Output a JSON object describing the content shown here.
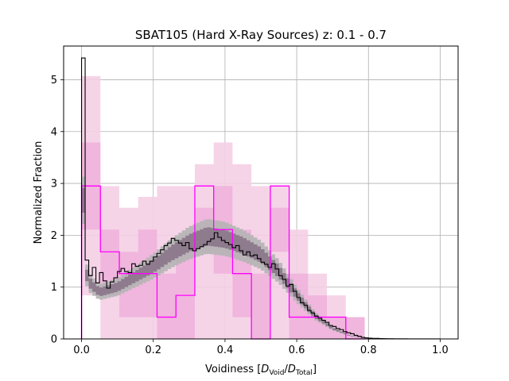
{
  "chart_data": {
    "type": "area",
    "title": "SBAT105 (Hard X-Ray Sources) z: 0.1 - 0.7",
    "xlabel": {
      "prefix": "Voidiness [",
      "num": "D",
      "num_sub": "Void",
      "sep": "/",
      "den": "D",
      "den_sub": "Total",
      "suffix": "]"
    },
    "ylabel": "Normalized Fraction",
    "xlim": [
      -0.05,
      1.05
    ],
    "ylim": [
      0,
      5.65
    ],
    "grid": true,
    "x_ticks": [
      0.0,
      0.2,
      0.4,
      0.6,
      0.8,
      1.0
    ],
    "x_tick_labels": [
      "0.0",
      "0.2",
      "0.4",
      "0.6",
      "0.8",
      "1.0"
    ],
    "y_ticks": [
      0,
      1,
      2,
      3,
      4,
      5
    ],
    "y_tick_labels": [
      "0",
      "1",
      "2",
      "3",
      "4",
      "5"
    ],
    "colors": {
      "target": "#ff00ff",
      "target_band_outer": "#f5cfe6",
      "target_band_inner": "#efb0da",
      "reference_line": "#000000",
      "reference_band_outer": "#b4b4b4",
      "reference_band_inner": "#8a7488"
    },
    "series": [
      {
        "role": "target",
        "edges": [
          0.0,
          0.0526,
          0.1053,
          0.1579,
          0.2105,
          0.2632,
          0.3158,
          0.3684,
          0.4211,
          0.4737,
          0.5263,
          0.5789,
          0.6316,
          0.6842,
          0.7368,
          0.7895
        ],
        "values": [
          2.95,
          1.68,
          1.26,
          1.26,
          0.42,
          0.84,
          2.95,
          2.11,
          1.26,
          0.0,
          2.95,
          0.42,
          0.42,
          0.42,
          0.0
        ],
        "band_outer_low": [
          0.84,
          0.0,
          0.0,
          0.0,
          0.0,
          0.0,
          0.0,
          0.0,
          0.0,
          0.0,
          0.0,
          0.0,
          0.0,
          0.0,
          0.0
        ],
        "band_outer_high": [
          5.07,
          2.95,
          2.53,
          2.74,
          2.95,
          2.95,
          3.37,
          3.79,
          3.37,
          2.95,
          2.95,
          2.11,
          1.26,
          0.84,
          0.42
        ],
        "band_inner_low": [
          2.11,
          0.84,
          0.42,
          0.42,
          0.0,
          0.0,
          1.68,
          1.26,
          0.42,
          0.0,
          1.68,
          0.0,
          0.0,
          0.0,
          0.0
        ],
        "band_inner_high": [
          3.79,
          2.11,
          1.68,
          2.11,
          1.26,
          1.68,
          2.53,
          2.95,
          2.11,
          1.26,
          2.53,
          1.26,
          0.84,
          0.42,
          0.42
        ]
      },
      {
        "role": "reference",
        "bin_width": 0.01,
        "values": [
          5.42,
          1.52,
          1.22,
          1.38,
          1.08,
          1.28,
          1.12,
          0.98,
          1.1,
          1.18,
          1.3,
          1.36,
          1.3,
          1.28,
          1.45,
          1.4,
          1.42,
          1.5,
          1.44,
          1.5,
          1.58,
          1.65,
          1.72,
          1.8,
          1.85,
          1.94,
          1.9,
          1.85,
          1.8,
          1.86,
          1.74,
          1.7,
          1.74,
          1.78,
          1.82,
          1.88,
          1.93,
          2.05,
          1.96,
          1.9,
          1.86,
          1.82,
          1.76,
          1.8,
          1.7,
          1.62,
          1.68,
          1.6,
          1.62,
          1.55,
          1.48,
          1.44,
          1.38,
          1.45,
          1.35,
          1.22,
          1.15,
          1.02,
          1.05,
          0.92,
          0.8,
          0.7,
          0.65,
          0.55,
          0.5,
          0.44,
          0.4,
          0.36,
          0.32,
          0.26,
          0.24,
          0.2,
          0.18,
          0.14,
          0.12,
          0.1,
          0.07,
          0.05,
          0.03,
          0.02,
          0.015,
          0.01,
          0.01,
          0.006,
          0.005,
          0.004,
          0.003,
          0.002,
          0.002,
          0.001,
          0.001,
          0.0,
          0.0,
          0.0,
          0.0,
          0.0,
          0.0,
          0.0,
          0.0,
          0.0
        ],
        "band_anchor_x": [
          0.0,
          0.01,
          0.02,
          0.05,
          0.1,
          0.15,
          0.2,
          0.25,
          0.3,
          0.35,
          0.4,
          0.45,
          0.5,
          0.55,
          0.6,
          0.65,
          0.7,
          0.75,
          0.8
        ],
        "band_anchor_y": [
          4.0,
          1.35,
          1.1,
          0.9,
          1.0,
          1.2,
          1.4,
          1.65,
          1.85,
          1.98,
          1.93,
          1.8,
          1.62,
          1.3,
          0.85,
          0.45,
          0.2,
          0.06,
          0.01
        ],
        "band_inner_halfwidth": 0.09,
        "band_outer_halfwidth": 0.17
      }
    ]
  }
}
